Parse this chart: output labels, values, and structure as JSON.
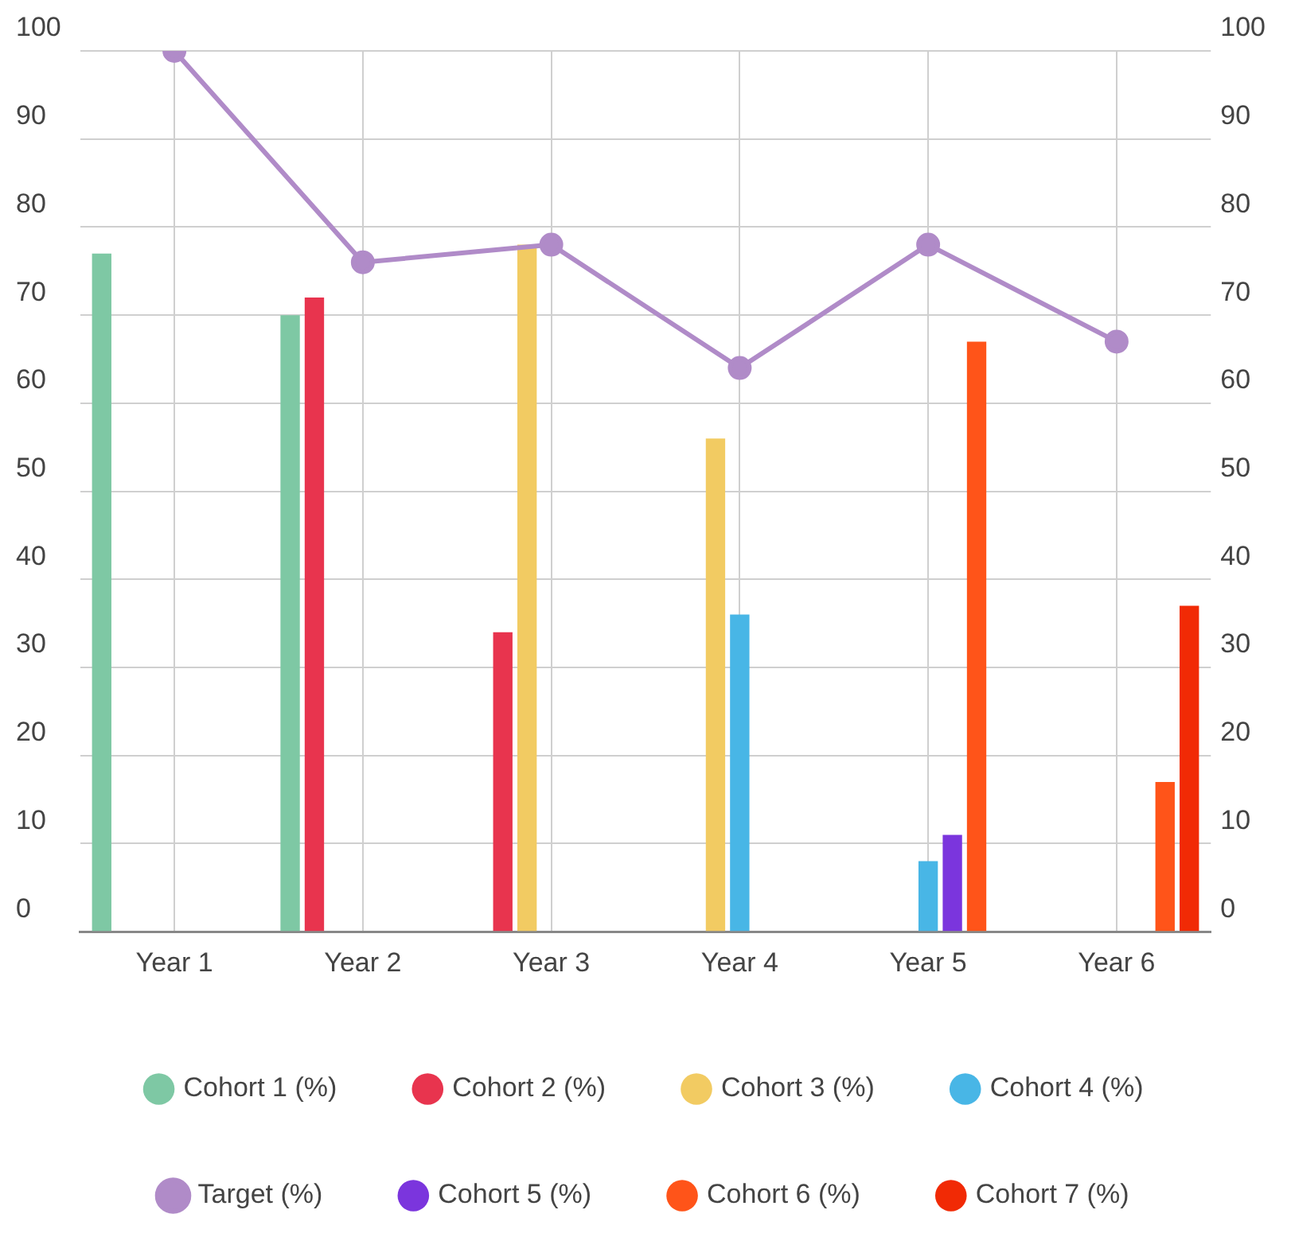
{
  "chart_data": {
    "type": "bar",
    "categories": [
      "Year 1",
      "Year 2",
      "Year 3",
      "Year 4",
      "Year 5",
      "Year 6"
    ],
    "series": [
      {
        "name": "Cohort 1 (%)",
        "color": "#7ec8a4",
        "values": [
          77,
          70,
          null,
          null,
          null,
          null
        ]
      },
      {
        "name": "Cohort 2 (%)",
        "color": "#e8344e",
        "values": [
          null,
          72,
          34,
          null,
          null,
          null
        ]
      },
      {
        "name": "Cohort 3 (%)",
        "color": "#f2cb62",
        "values": [
          null,
          null,
          78,
          56,
          null,
          null
        ]
      },
      {
        "name": "Cohort 4 (%)",
        "color": "#48b6e6",
        "values": [
          null,
          null,
          null,
          36,
          8,
          null
        ]
      },
      {
        "name": "Target (%)",
        "type": "line",
        "color": "#b08bc8",
        "values": [
          100,
          76,
          78,
          64,
          78,
          67
        ]
      },
      {
        "name": "Cohort 5 (%)",
        "color": "#7b35dd",
        "values": [
          null,
          null,
          null,
          null,
          11,
          null
        ]
      },
      {
        "name": "Cohort 6 (%)",
        "color": "#ff5419",
        "values": [
          null,
          null,
          null,
          null,
          67,
          17
        ]
      },
      {
        "name": "Cohort 7 (%)",
        "color": "#f12a05",
        "values": [
          null,
          null,
          null,
          null,
          null,
          37
        ]
      }
    ],
    "ylim": [
      0,
      100
    ],
    "yticks": [
      0,
      10,
      20,
      30,
      40,
      50,
      60,
      70,
      80,
      90,
      100
    ],
    "y2lim": [
      0,
      100
    ],
    "y2ticks": [
      0,
      10,
      20,
      30,
      40,
      50,
      60,
      70,
      80,
      90,
      100
    ],
    "grid": true,
    "legend": "bottom",
    "marker": "circle"
  }
}
